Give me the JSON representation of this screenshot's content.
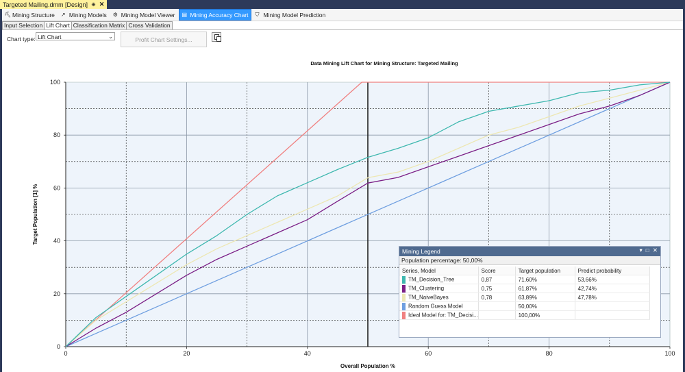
{
  "document_tab": {
    "title": "Targeted Mailing.dmm [Design]",
    "pin": "⊕",
    "close": "✕"
  },
  "designer_tabs": [
    {
      "label": "Mining Structure",
      "icon": "structure-icon",
      "active": false
    },
    {
      "label": "Mining Models",
      "icon": "models-icon",
      "active": false
    },
    {
      "label": "Mining Model Viewer",
      "icon": "viewer-icon",
      "active": false
    },
    {
      "label": "Mining Accuracy Chart",
      "icon": "accuracy-chart-icon",
      "active": true
    },
    {
      "label": "Mining Model Prediction",
      "icon": "prediction-icon",
      "active": false
    }
  ],
  "subtabs": [
    {
      "label": "Input Selection",
      "active": false
    },
    {
      "label": "Lift Chart",
      "active": true
    },
    {
      "label": "Classification Matrix",
      "active": false
    },
    {
      "label": "Cross Validation",
      "active": false
    }
  ],
  "controls": {
    "chart_type_label": "Chart type:",
    "chart_type_value": "Lift Chart",
    "profit_button": "Profit Chart Settings..."
  },
  "legend": {
    "title": "Mining Legend",
    "population": "Population percentage: 50,00%",
    "headers": [
      "Series, Model",
      "Score",
      "Target population",
      "Predict probability"
    ],
    "rows": [
      {
        "name": "TM_Decision_Tree",
        "score": "0,87",
        "target": "71,60%",
        "prob": "53,66%",
        "color": "#3fb8af"
      },
      {
        "name": "TM_Clustering",
        "score": "0,75",
        "target": "61,87%",
        "prob": "42,74%",
        "color": "#7b1f86"
      },
      {
        "name": "TM_NaiveBayes",
        "score": "0,78",
        "target": "63,89%",
        "prob": "47,78%",
        "color": "#ede7b3"
      },
      {
        "name": "Random Guess Model",
        "score": "",
        "target": "50,00%",
        "prob": "",
        "color": "#6f9fe0"
      },
      {
        "name": "Ideal Model for: TM_Decisi...",
        "score": "",
        "target": "100,00%",
        "prob": "",
        "color": "#f08080"
      }
    ]
  },
  "chart_data": {
    "type": "line",
    "title": "Data Mining Lift Chart for Mining Structure: Targeted Mailing",
    "xlabel": "Overall Population %",
    "ylabel": "Target Population [1] %",
    "xlim": [
      0,
      100
    ],
    "ylim": [
      0,
      100
    ],
    "xticks": [
      0,
      20,
      40,
      60,
      80,
      100
    ],
    "yticks": [
      0,
      20,
      40,
      60,
      80,
      100
    ],
    "grid": true,
    "reference_line_x": 50,
    "series": [
      {
        "name": "TM_Decision_Tree",
        "color": "#3fb8af",
        "x": [
          0,
          5,
          10,
          15,
          20,
          25,
          30,
          35,
          40,
          45,
          50,
          55,
          60,
          65,
          70,
          75,
          80,
          85,
          90,
          95,
          100
        ],
        "y": [
          0,
          11,
          19,
          27,
          35,
          42,
          50,
          57,
          62,
          67,
          71.6,
          75,
          79,
          85,
          89,
          91,
          93,
          96,
          97,
          99,
          100
        ]
      },
      {
        "name": "TM_Clustering",
        "color": "#7b1f86",
        "x": [
          0,
          5,
          10,
          15,
          20,
          25,
          30,
          35,
          40,
          45,
          50,
          55,
          60,
          65,
          70,
          75,
          80,
          85,
          90,
          95,
          100
        ],
        "y": [
          0,
          7,
          13,
          20,
          27,
          33,
          38,
          43,
          48,
          55,
          61.87,
          64,
          68,
          72,
          76,
          80,
          84,
          88,
          91,
          95,
          100
        ]
      },
      {
        "name": "TM_NaiveBayes",
        "color": "#ede7b3",
        "x": [
          0,
          5,
          10,
          15,
          20,
          25,
          30,
          35,
          40,
          45,
          50,
          55,
          60,
          65,
          70,
          75,
          80,
          85,
          90,
          95,
          100
        ],
        "y": [
          0,
          10,
          17,
          24,
          31,
          37,
          42,
          47,
          52,
          57,
          63.89,
          66,
          70,
          75,
          80,
          83,
          87,
          91,
          94,
          97,
          100
        ]
      },
      {
        "name": "Random Guess Model",
        "color": "#6f9fe0",
        "x": [
          0,
          100
        ],
        "y": [
          0,
          100
        ]
      },
      {
        "name": "Ideal Model for: TM_Decision_Tree",
        "color": "#f08080",
        "x": [
          0,
          49,
          100
        ],
        "y": [
          0,
          100,
          100
        ]
      }
    ]
  }
}
